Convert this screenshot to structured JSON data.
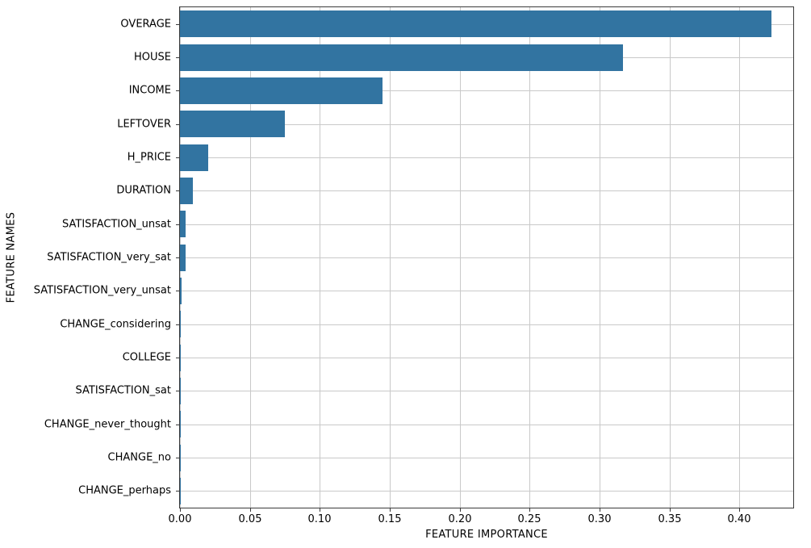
{
  "figure": {
    "background": "#ffffff"
  },
  "chart_data": {
    "type": "bar",
    "orientation": "horizontal",
    "title": "",
    "xlabel": "FEATURE IMPORTANCE",
    "ylabel": "FEATURE NAMES",
    "categories": [
      "OVERAGE",
      "HOUSE",
      "INCOME",
      "LEFTOVER",
      "H_PRICE",
      "DURATION",
      "SATISFACTION_unsat",
      "SATISFACTION_very_sat",
      "SATISFACTION_very_unsat",
      "CHANGE_considering",
      "COLLEGE",
      "SATISFACTION_sat",
      "CHANGE_never_thought",
      "CHANGE_no",
      "CHANGE_perhaps"
    ],
    "values": [
      0.423,
      0.317,
      0.145,
      0.075,
      0.02,
      0.009,
      0.004,
      0.004,
      0.001,
      0.0008,
      0.0007,
      0.0006,
      0.0005,
      0.0004,
      0.0003
    ],
    "xticks": [
      0.0,
      0.05,
      0.1,
      0.15,
      0.2,
      0.25,
      0.3,
      0.35,
      0.4
    ],
    "xtick_labels": [
      "0.00",
      "0.05",
      "0.10",
      "0.15",
      "0.20",
      "0.25",
      "0.30",
      "0.35",
      "0.40"
    ],
    "xlim": [
      0,
      0.4385
    ],
    "grid": true,
    "legend_position": "none",
    "bar_color": "#3274a1",
    "grid_color": "#c9c9c9",
    "bar_fraction": 0.8
  }
}
